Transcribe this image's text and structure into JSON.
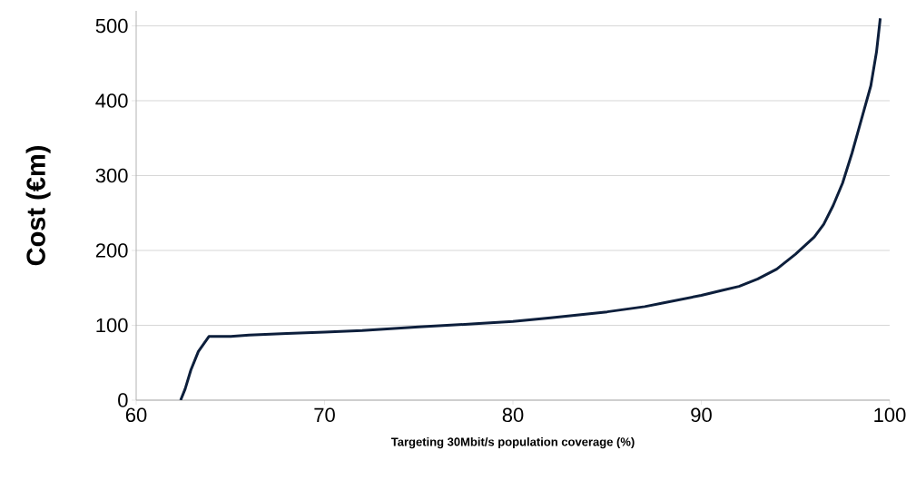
{
  "chart_data": {
    "type": "line",
    "xlabel": "Targeting 30Mbit/s population coverage (%)",
    "ylabel": "Cost (€m)",
    "x": [
      62.36,
      62.6,
      62.9,
      63.3,
      63.86,
      65,
      66,
      68,
      70,
      72,
      75,
      78,
      80,
      82,
      85,
      87,
      88,
      90,
      91,
      92,
      93,
      94,
      95,
      96,
      96.5,
      97,
      97.5,
      98,
      98.5,
      99,
      99.3,
      99.5
    ],
    "series": [
      {
        "color": "#0d1f3c",
        "values": [
          0,
          15,
          40,
          65,
          85,
          85,
          87,
          89,
          91,
          93,
          98,
          102,
          105,
          110,
          118,
          125,
          130,
          140,
          146,
          152,
          162,
          175,
          195,
          218,
          235,
          260,
          290,
          330,
          375,
          420,
          465,
          510
        ]
      }
    ],
    "xlim": [
      60,
      100
    ],
    "ylim": [
      0,
      520
    ],
    "xticks": [
      60,
      70,
      80,
      90,
      100
    ],
    "yticks": [
      0,
      100,
      200,
      300,
      400,
      500
    ],
    "grid": "y",
    "marker": "none",
    "line_style": "solid"
  }
}
